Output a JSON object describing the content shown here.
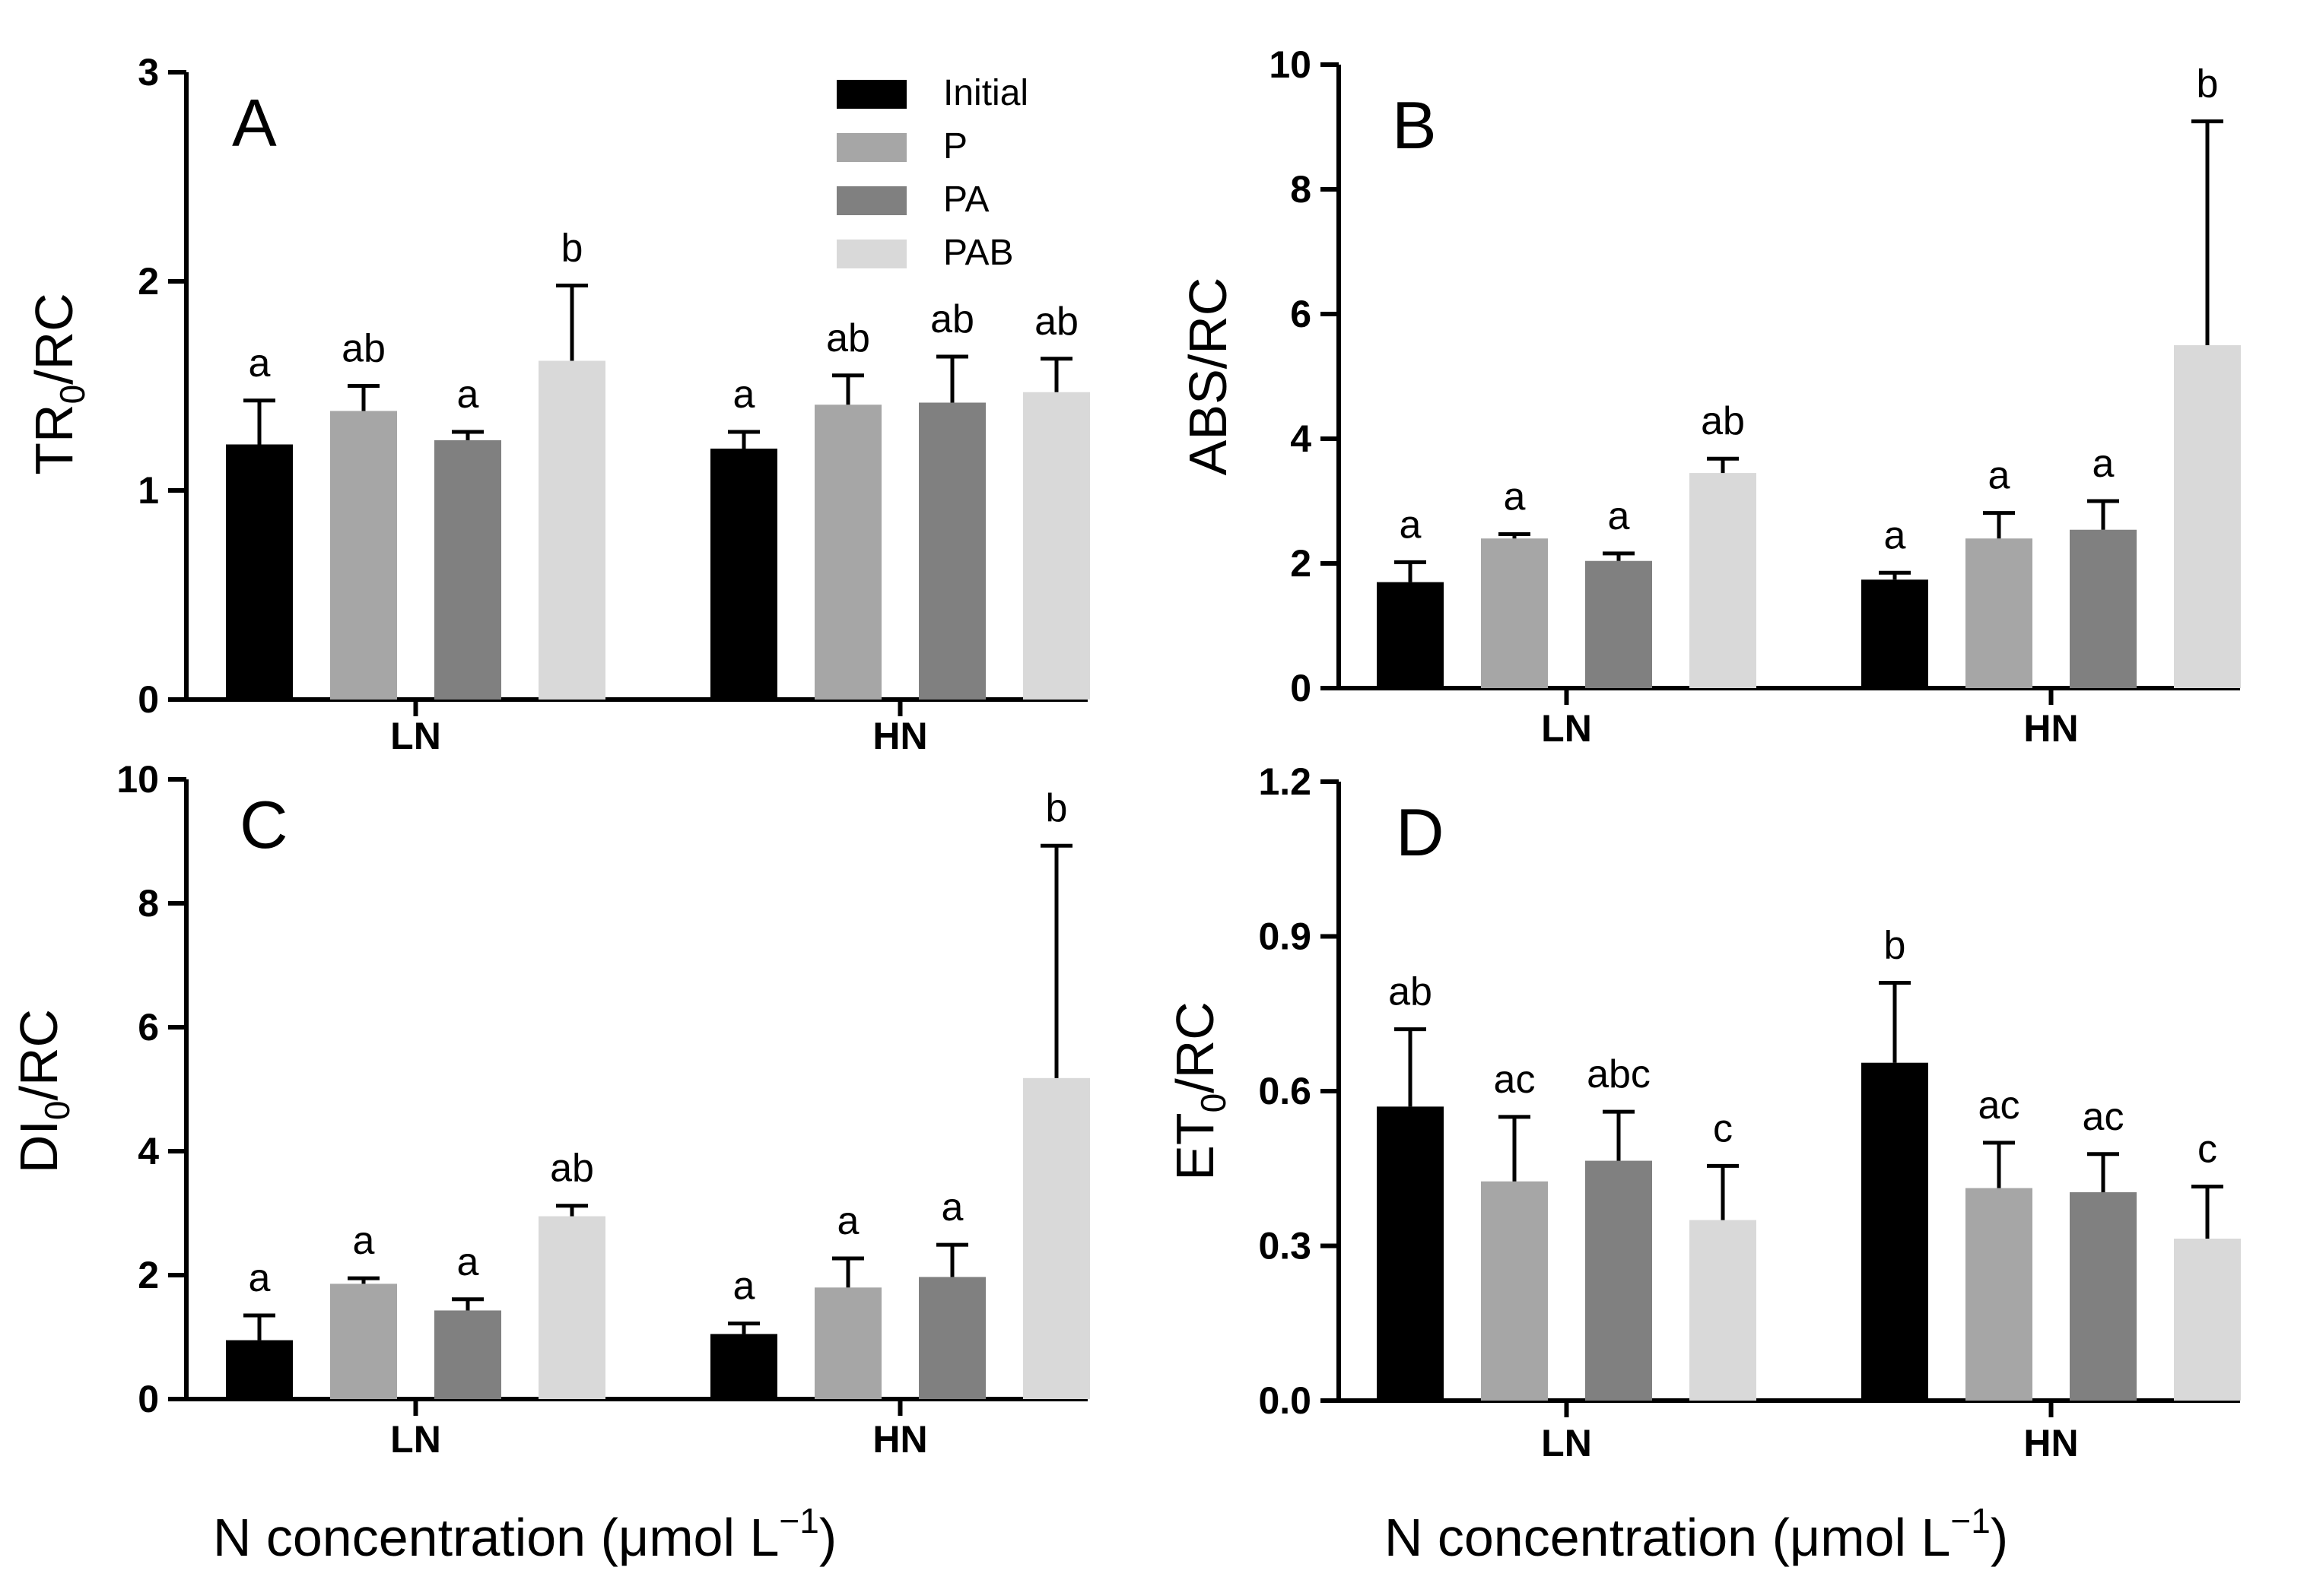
{
  "figure": {
    "x_axis_label": "N concentration (μmol L",
    "x_axis_label_sup": "−1",
    "x_axis_label_close": ")"
  },
  "legend": [
    {
      "name": "Initial",
      "color": "#000000"
    },
    {
      "name": "P",
      "color": "#a6a6a6"
    },
    {
      "name": "PA",
      "color": "#808080"
    },
    {
      "name": "PAB",
      "color": "#d9d9d9"
    }
  ],
  "chart_data": [
    {
      "type": "bar",
      "panel": "A",
      "ylabel": {
        "main": "TR",
        "sub": "0",
        "rest": "/RC"
      },
      "categories": [
        "LN",
        "HN"
      ],
      "ylim": [
        0,
        3
      ],
      "yticks": [
        0,
        1,
        2,
        3
      ],
      "tick_labels": [
        "0",
        "1",
        "2",
        "3"
      ],
      "series": [
        {
          "name": "Initial",
          "values": [
            1.22,
            1.2
          ],
          "errors": [
            0.21,
            0.08
          ],
          "labels": [
            "a",
            "a"
          ]
        },
        {
          "name": "P",
          "values": [
            1.38,
            1.41
          ],
          "errors": [
            0.12,
            0.14
          ],
          "labels": [
            "ab",
            "ab"
          ]
        },
        {
          "name": "PA",
          "values": [
            1.24,
            1.42
          ],
          "errors": [
            0.04,
            0.22
          ],
          "labels": [
            "a",
            "ab"
          ]
        },
        {
          "name": "PAB",
          "values": [
            1.62,
            1.47
          ],
          "errors": [
            0.36,
            0.16
          ],
          "labels": [
            "b",
            "ab"
          ]
        }
      ]
    },
    {
      "type": "bar",
      "panel": "B",
      "ylabel": {
        "main": "ABS/RC",
        "sub": "",
        "rest": ""
      },
      "categories": [
        "LN",
        "HN"
      ],
      "ylim": [
        0,
        10
      ],
      "yticks": [
        0,
        2,
        4,
        6,
        8,
        10
      ],
      "tick_labels": [
        "0",
        "2",
        "4",
        "6",
        "8",
        "10"
      ],
      "series": [
        {
          "name": "Initial",
          "values": [
            1.7,
            1.74
          ],
          "errors": [
            0.32,
            0.11
          ],
          "labels": [
            "a",
            "a"
          ]
        },
        {
          "name": "P",
          "values": [
            2.4,
            2.4
          ],
          "errors": [
            0.07,
            0.41
          ],
          "labels": [
            "a",
            "a"
          ]
        },
        {
          "name": "PA",
          "values": [
            2.04,
            2.54
          ],
          "errors": [
            0.12,
            0.46
          ],
          "labels": [
            "a",
            "a"
          ]
        },
        {
          "name": "PAB",
          "values": [
            3.45,
            5.5
          ],
          "errors": [
            0.23,
            3.59
          ],
          "labels": [
            "ab",
            "b"
          ]
        }
      ]
    },
    {
      "type": "bar",
      "panel": "C",
      "ylabel": {
        "main": "DI",
        "sub": "0",
        "rest": "/RC"
      },
      "categories": [
        "LN",
        "HN"
      ],
      "ylim": [
        0,
        10
      ],
      "yticks": [
        0,
        2,
        4,
        6,
        8,
        10
      ],
      "tick_labels": [
        "0",
        "2",
        "4",
        "6",
        "8",
        "10"
      ],
      "series": [
        {
          "name": "Initial",
          "values": [
            0.95,
            1.05
          ],
          "errors": [
            0.4,
            0.17
          ],
          "labels": [
            "a",
            "a"
          ]
        },
        {
          "name": "P",
          "values": [
            1.86,
            1.8
          ],
          "errors": [
            0.09,
            0.47
          ],
          "labels": [
            "a",
            "a"
          ]
        },
        {
          "name": "PA",
          "values": [
            1.43,
            1.97
          ],
          "errors": [
            0.18,
            0.52
          ],
          "labels": [
            "a",
            "a"
          ]
        },
        {
          "name": "PAB",
          "values": [
            2.95,
            5.18
          ],
          "errors": [
            0.17,
            3.75
          ],
          "labels": [
            "ab",
            "b"
          ]
        }
      ]
    },
    {
      "type": "bar",
      "panel": "D",
      "ylabel": {
        "main": "ET",
        "sub": "0",
        "rest": "/RC"
      },
      "categories": [
        "LN",
        "HN"
      ],
      "ylim": [
        0,
        1.2
      ],
      "yticks": [
        0,
        0.3,
        0.6,
        0.9,
        1.2
      ],
      "tick_labels": [
        "0.0",
        "0.3",
        "0.6",
        "0.9",
        "1.2"
      ],
      "series": [
        {
          "name": "Initial",
          "values": [
            0.57,
            0.655
          ],
          "errors": [
            0.15,
            0.155
          ],
          "labels": [
            "ab",
            "b"
          ]
        },
        {
          "name": "P",
          "values": [
            0.425,
            0.412
          ],
          "errors": [
            0.125,
            0.088
          ],
          "labels": [
            "ac",
            "ac"
          ]
        },
        {
          "name": "PA",
          "values": [
            0.465,
            0.404
          ],
          "errors": [
            0.095,
            0.074
          ],
          "labels": [
            "abc",
            "ac"
          ]
        },
        {
          "name": "PAB",
          "values": [
            0.35,
            0.314
          ],
          "errors": [
            0.105,
            0.101
          ],
          "labels": [
            "c",
            "c"
          ]
        }
      ]
    }
  ]
}
